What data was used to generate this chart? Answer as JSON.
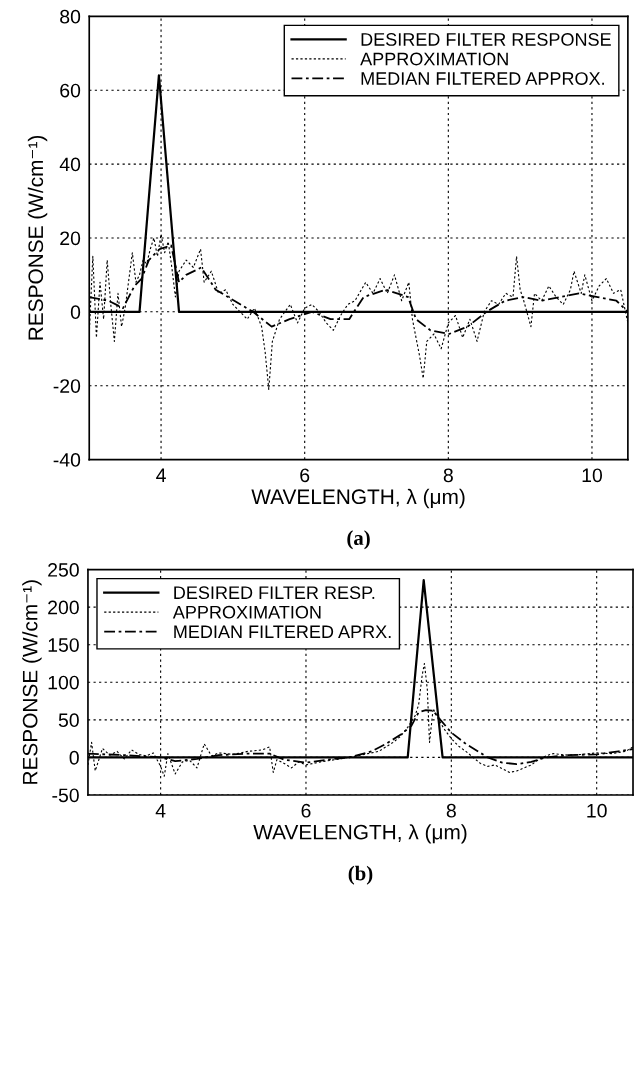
{
  "chart_data": [
    {
      "type": "line",
      "xlabel": "WAVELENGTH, λ (μm)",
      "ylabel": "RESPONSE (W/cm⁻¹)",
      "xlim": [
        3,
        10.5
      ],
      "ylim": [
        -40,
        80
      ],
      "xticks": [
        4,
        6,
        8,
        10
      ],
      "yticks": [
        -40,
        -20,
        0,
        20,
        40,
        60,
        80
      ],
      "grid": true,
      "legend": "top right",
      "annotations": [
        "(a)"
      ],
      "series": [
        {
          "name": "DESIRED FILTER RESPONSE",
          "color": "#000000",
          "line_style": "solid",
          "x": [
            3.0,
            3.7,
            3.97,
            4.25,
            10.5
          ],
          "values": [
            0,
            0,
            64,
            0,
            0
          ]
        },
        {
          "name": "APPROXIMATION",
          "color": "#000000",
          "line_style": "dotted",
          "x": [
            3.0,
            3.05,
            3.1,
            3.15,
            3.2,
            3.25,
            3.3,
            3.35,
            3.4,
            3.45,
            3.5,
            3.6,
            3.65,
            3.7,
            3.75,
            3.8,
            3.85,
            3.9,
            3.95,
            4.0,
            4.05,
            4.1,
            4.15,
            4.2,
            4.25,
            4.35,
            4.45,
            4.55,
            4.6,
            4.7,
            4.8,
            4.9,
            5.0,
            5.1,
            5.2,
            5.3,
            5.4,
            5.45,
            5.5,
            5.55,
            5.65,
            5.8,
            5.9,
            6.0,
            6.1,
            6.2,
            6.3,
            6.4,
            6.5,
            6.6,
            6.7,
            6.85,
            6.95,
            7.05,
            7.15,
            7.25,
            7.35,
            7.45,
            7.5,
            7.6,
            7.65,
            7.7,
            7.8,
            7.9,
            8.0,
            8.1,
            8.2,
            8.3,
            8.4,
            8.5,
            8.6,
            8.7,
            8.8,
            8.9,
            8.95,
            9.0,
            9.05,
            9.15,
            9.2,
            9.3,
            9.4,
            9.5,
            9.6,
            9.7,
            9.75,
            9.85,
            9.9,
            10.0,
            10.1,
            10.2,
            10.3,
            10.4,
            10.5
          ],
          "values": [
            -6,
            15,
            -7,
            8,
            -2,
            14,
            2,
            -8,
            5,
            -4,
            1,
            16,
            8,
            10,
            14,
            13,
            17,
            20,
            15,
            21,
            16,
            19,
            12,
            4,
            11,
            14,
            12,
            17,
            8,
            11,
            5,
            6,
            2,
            0,
            -2,
            1,
            -4,
            -11,
            -21,
            -8,
            -2,
            2,
            -3,
            1,
            2,
            0,
            -3,
            -5,
            -1,
            2,
            3,
            8,
            5,
            9,
            5,
            10,
            3,
            8,
            -2,
            -12,
            -18,
            -8,
            -6,
            -10,
            -3,
            -1,
            -7,
            -2,
            -8,
            0,
            3,
            2,
            5,
            4,
            15,
            6,
            3,
            -4,
            5,
            3,
            7,
            4,
            2,
            6,
            11,
            5,
            10,
            3,
            7,
            9,
            5,
            6,
            -3
          ]
        },
        {
          "name": "MEDIAN FILTERED APPROX.",
          "color": "#000000",
          "line_style": "dashdot",
          "x": [
            3.0,
            3.27,
            3.47,
            3.63,
            3.73,
            3.83,
            3.98,
            4.14,
            4.25,
            4.35,
            4.56,
            4.76,
            5.02,
            5.28,
            5.54,
            5.79,
            6.1,
            6.36,
            6.62,
            6.82,
            7.13,
            7.44,
            7.55,
            7.75,
            8.01,
            8.27,
            8.53,
            8.79,
            9.04,
            9.3,
            9.56,
            9.82,
            10.08,
            10.34,
            10.5
          ],
          "values": [
            4,
            3,
            1,
            7,
            9,
            14,
            17,
            18,
            8,
            10,
            12,
            6,
            3,
            0,
            -4,
            -2,
            0,
            -2,
            -2,
            4,
            6,
            4,
            -2,
            -5,
            -6,
            -4,
            0,
            3,
            4,
            3,
            4,
            5,
            4,
            3,
            0
          ]
        }
      ]
    },
    {
      "type": "line",
      "xlabel": "WAVELENGTH, λ (μm)",
      "ylabel": "RESPONSE (W/cm⁻¹)",
      "xlim": [
        3,
        10.5
      ],
      "ylim": [
        -50,
        250
      ],
      "xticks": [
        4,
        6,
        8,
        10
      ],
      "yticks": [
        -50,
        0,
        50,
        100,
        150,
        200,
        250
      ],
      "grid": true,
      "legend": "top left",
      "annotations": [
        "(b)"
      ],
      "series": [
        {
          "name": "DESIRED FILTER RESP.",
          "color": "#000000",
          "line_style": "solid",
          "x": [
            3.0,
            7.4,
            7.62,
            7.88,
            10.5
          ],
          "values": [
            0,
            0,
            236,
            0,
            0
          ]
        },
        {
          "name": "APPROXIMATION",
          "color": "#000000",
          "line_style": "dotted",
          "x": [
            3.0,
            3.05,
            3.1,
            3.2,
            3.3,
            3.4,
            3.5,
            3.6,
            3.7,
            3.8,
            3.9,
            4.0,
            4.05,
            4.1,
            4.2,
            4.3,
            4.4,
            4.5,
            4.6,
            4.7,
            4.8,
            5.0,
            5.2,
            5.4,
            5.5,
            5.55,
            5.6,
            5.7,
            5.8,
            5.9,
            6.0,
            6.2,
            6.4,
            6.6,
            6.8,
            7.0,
            7.1,
            7.2,
            7.3,
            7.4,
            7.5,
            7.55,
            7.6,
            7.63,
            7.67,
            7.7,
            7.75,
            7.8,
            7.9,
            8.0,
            8.1,
            8.2,
            8.3,
            8.4,
            8.5,
            8.6,
            8.7,
            8.8,
            8.9,
            9.0,
            9.1,
            9.2,
            9.3,
            9.4,
            9.6,
            9.8,
            10.0,
            10.2,
            10.4,
            10.5
          ],
          "values": [
            -10,
            20,
            -18,
            12,
            3,
            8,
            -2,
            10,
            4,
            2,
            6,
            -12,
            -25,
            5,
            -22,
            -6,
            -4,
            -14,
            18,
            2,
            6,
            4,
            8,
            10,
            14,
            -20,
            -3,
            -8,
            -14,
            -6,
            -10,
            -6,
            -3,
            0,
            4,
            8,
            14,
            20,
            28,
            40,
            55,
            70,
            110,
            125,
            90,
            20,
            65,
            55,
            38,
            25,
            15,
            8,
            0,
            -8,
            -12,
            -10,
            -15,
            -20,
            -18,
            -14,
            -10,
            -3,
            2,
            5,
            3,
            4,
            6,
            5,
            8,
            14
          ]
        },
        {
          "name": "MEDIAN FILTERED APRX.",
          "color": "#000000",
          "line_style": "dashdot",
          "x": [
            3.0,
            3.5,
            4.0,
            4.2,
            4.5,
            4.8,
            5.2,
            5.5,
            5.7,
            6.0,
            6.3,
            6.6,
            6.9,
            7.1,
            7.3,
            7.45,
            7.55,
            7.65,
            7.75,
            7.85,
            8.0,
            8.2,
            8.5,
            8.7,
            8.9,
            9.1,
            9.3,
            9.6,
            10.0,
            10.3,
            10.5
          ],
          "values": [
            5,
            3,
            0,
            -5,
            -2,
            3,
            5,
            5,
            -3,
            -7,
            -3,
            0,
            8,
            18,
            30,
            42,
            60,
            63,
            62,
            50,
            33,
            18,
            0,
            -7,
            -9,
            -6,
            0,
            3,
            4,
            8,
            11
          ]
        }
      ]
    }
  ]
}
